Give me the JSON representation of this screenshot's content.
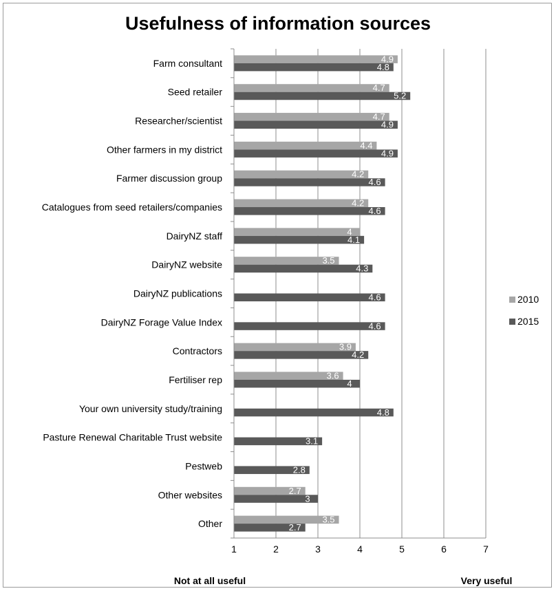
{
  "chart_data": {
    "type": "bar",
    "orientation": "horizontal",
    "title": "Usefulness of information sources",
    "categories": [
      "Farm consultant",
      "Seed retailer",
      "Researcher/scientist",
      "Other farmers in my district",
      "Farmer discussion group",
      "Catalogues from seed retailers/companies",
      "DairyNZ staff",
      "DairyNZ website",
      "DairyNZ publications",
      "DairyNZ Forage Value Index",
      "Contractors",
      "Fertiliser rep",
      "Your own university study/training",
      "Pasture Renewal Charitable Trust website",
      "Pestweb",
      "Other websites",
      "Other"
    ],
    "series": [
      {
        "name": "2010",
        "color": "#a6a6a6",
        "values": [
          4.9,
          4.7,
          4.7,
          4.4,
          4.2,
          4.2,
          4,
          3.5,
          null,
          null,
          3.9,
          3.6,
          null,
          null,
          null,
          2.7,
          3.5
        ]
      },
      {
        "name": "2015",
        "color": "#595959",
        "values": [
          4.8,
          5.2,
          4.9,
          4.9,
          4.6,
          4.6,
          4.1,
          4.3,
          4.6,
          4.6,
          4.2,
          4,
          4.8,
          3.1,
          2.8,
          3,
          2.7
        ]
      }
    ],
    "xlim": [
      1,
      7
    ],
    "xticks": [
      1,
      2,
      3,
      4,
      5,
      6,
      7
    ],
    "grid": true,
    "legend_position": "right",
    "x_end_labels": {
      "low": "Not at all useful",
      "high": "Very useful"
    }
  }
}
